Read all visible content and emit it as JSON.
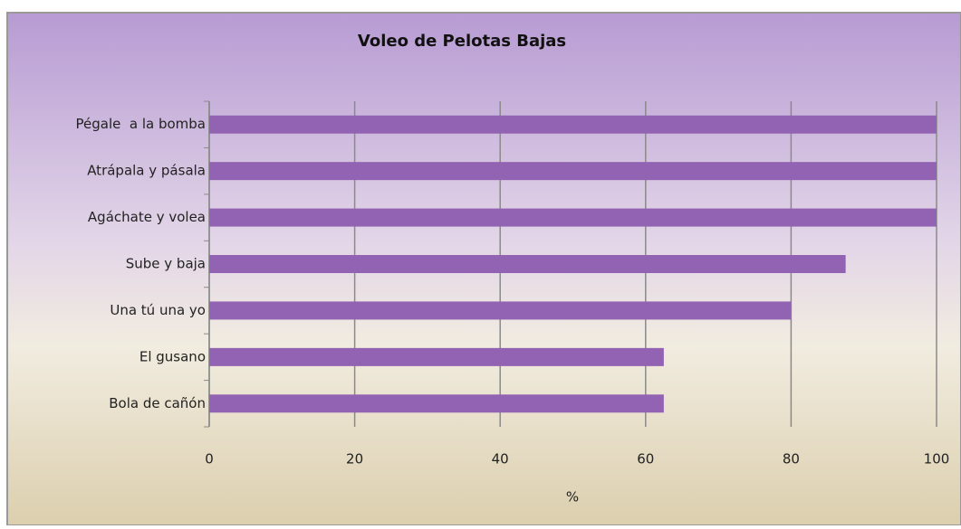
{
  "chart_data": {
    "type": "hbar",
    "title": "Voleo de Pelotas Bajas",
    "categories": [
      "Pégale  a la bomba",
      "Atrápala y pásala",
      "Agáchate y volea",
      "Sube y baja",
      "Una tú una yo",
      "El gusano",
      "Bola de cañón"
    ],
    "values": [
      100,
      100,
      100,
      87.5,
      80,
      62.5,
      62.5
    ],
    "color": "#9262b3",
    "x_label": "%",
    "xlim": [
      0,
      100
    ],
    "xticks": [
      0,
      20,
      40,
      60,
      80,
      100
    ],
    "grid": true
  }
}
